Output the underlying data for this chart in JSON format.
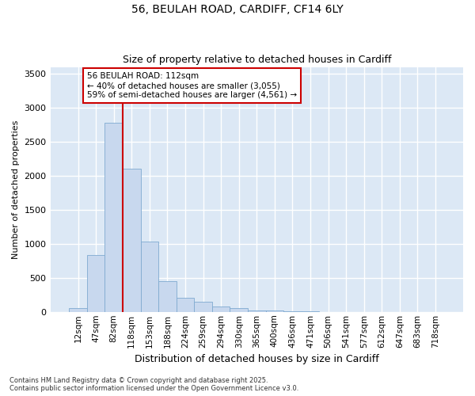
{
  "title_line1": "56, BEULAH ROAD, CARDIFF, CF14 6LY",
  "title_line2": "Size of property relative to detached houses in Cardiff",
  "xlabel": "Distribution of detached houses by size in Cardiff",
  "ylabel": "Number of detached properties",
  "bar_color": "#c8d8ee",
  "bar_edgecolor": "#7faad0",
  "background_color": "#dce8f5",
  "figure_color": "#ffffff",
  "grid_color": "#ffffff",
  "vline_color": "#cc0000",
  "annotation_text": "56 BEULAH ROAD: 112sqm\n← 40% of detached houses are smaller (3,055)\n59% of semi-detached houses are larger (4,561) →",
  "annotation_box_edgecolor": "#cc0000",
  "categories": [
    "12sqm",
    "47sqm",
    "82sqm",
    "118sqm",
    "153sqm",
    "188sqm",
    "224sqm",
    "259sqm",
    "294sqm",
    "330sqm",
    "365sqm",
    "400sqm",
    "436sqm",
    "471sqm",
    "506sqm",
    "541sqm",
    "577sqm",
    "612sqm",
    "647sqm",
    "683sqm",
    "718sqm"
  ],
  "values": [
    60,
    840,
    2780,
    2100,
    1030,
    450,
    210,
    145,
    80,
    50,
    25,
    15,
    8,
    5,
    3,
    2,
    1,
    0,
    0,
    0,
    0
  ],
  "ylim": [
    0,
    3600
  ],
  "yticks": [
    0,
    500,
    1000,
    1500,
    2000,
    2500,
    3000,
    3500
  ],
  "footnote1": "Contains HM Land Registry data © Crown copyright and database right 2025.",
  "footnote2": "Contains public sector information licensed under the Open Government Licence v3.0."
}
